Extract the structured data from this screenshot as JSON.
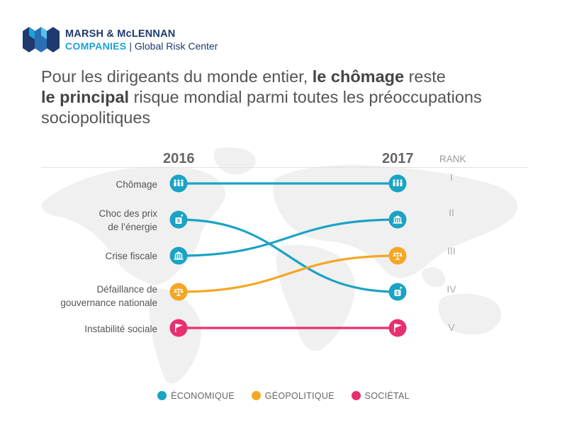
{
  "brand": {
    "line1": "MARSH & McLENNAN",
    "line2a": "COMPANIES",
    "line2b": "| Global Risk Center"
  },
  "headline": {
    "p1": "Pour les dirigeants du monde entier, ",
    "b1": "le chômage",
    "p2": " reste",
    "b2": "le principal",
    "p3": " risque mondial parmi toutes les préoccupations sociopolitiques"
  },
  "chart_data": {
    "type": "bump",
    "title": "Pour les dirigeants du monde entier, le chômage reste le principal risque mondial parmi toutes les préoccupations sociopolitiques",
    "years": [
      "2016",
      "2017"
    ],
    "rank_header": "RANK",
    "ranks": [
      "I",
      "II",
      "III",
      "IV",
      "V"
    ],
    "categories": {
      "economique": "#1aa3c4",
      "geopolitique": "#f5a623",
      "societal": "#e8306e"
    },
    "series": [
      {
        "name": "Chômage",
        "label_lines": [
          "Chômage"
        ],
        "category": "economique",
        "icon": "people-icon",
        "rank_2016": 1,
        "rank_2017": 1
      },
      {
        "name": "Choc des prix de l'énergie",
        "label_lines": [
          "Choc des prix",
          "de l’énergie"
        ],
        "category": "economique",
        "icon": "oil-barrel-icon",
        "rank_2016": 2,
        "rank_2017": 4
      },
      {
        "name": "Crise fiscale",
        "label_lines": [
          "Crise fiscale"
        ],
        "category": "economique",
        "icon": "bank-icon",
        "rank_2016": 3,
        "rank_2017": 2
      },
      {
        "name": "Défaillance de gouvernance nationale",
        "label_lines": [
          "Défaillance de",
          "gouvernance nationale"
        ],
        "category": "geopolitique",
        "icon": "scales-icon",
        "rank_2016": 4,
        "rank_2017": 3
      },
      {
        "name": "Instabilité sociale",
        "label_lines": [
          "Instabilité sociale"
        ],
        "category": "societal",
        "icon": "flag-icon",
        "rank_2016": 5,
        "rank_2017": 5
      }
    ],
    "legend": [
      {
        "key": "economique",
        "label": "ÉCONOMIQUE"
      },
      {
        "key": "geopolitique",
        "label": "GÉOPOLITIQUE"
      },
      {
        "key": "societal",
        "label": "SOCIÉTAL"
      }
    ]
  }
}
